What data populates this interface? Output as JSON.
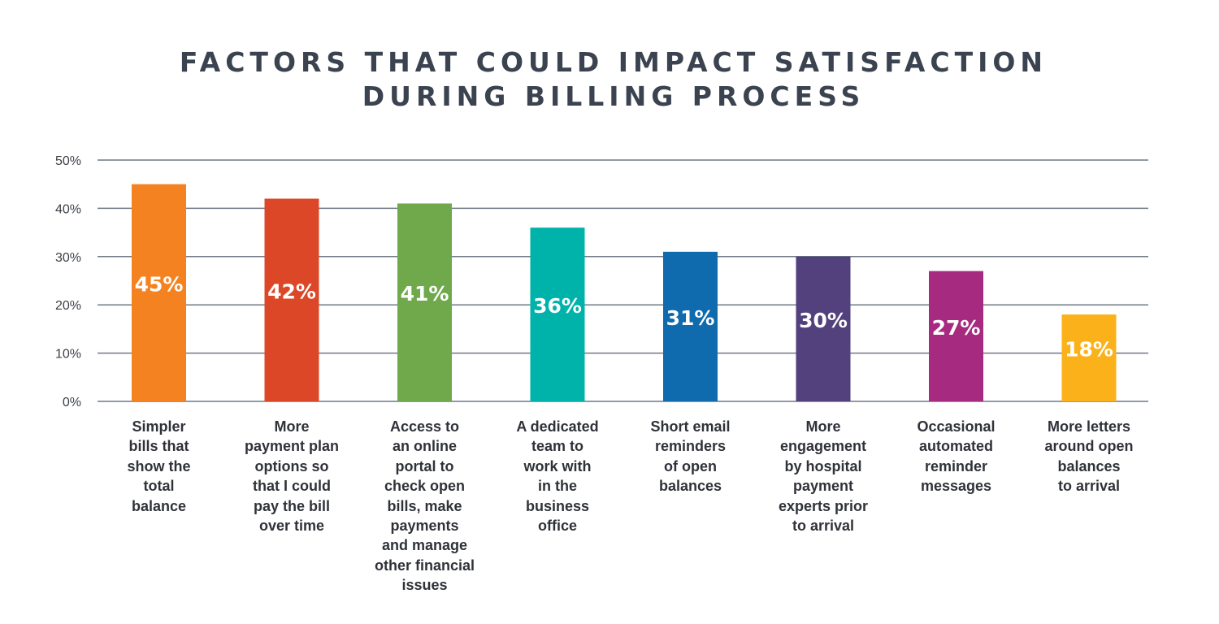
{
  "chart_data": {
    "type": "bar",
    "title": [
      "FACTORS THAT COULD IMPACT SATISFACTION",
      "DURING BILLING PROCESS"
    ],
    "xlabel": "",
    "ylabel": "",
    "ylim": [
      0,
      50
    ],
    "yticks": [
      "0%",
      "10%",
      "20%",
      "30%",
      "40%",
      "50%"
    ],
    "ytick_values": [
      0,
      10,
      20,
      30,
      40,
      50
    ],
    "grid": true,
    "categories": [
      "Simpler bills that show the total balance",
      "More payment plan options so that I could pay the bill over time",
      "Access to an online portal to check open bills, make payments and manage other financial issues",
      "A dedicated team to work with in the business office",
      "Short email reminders of open balances",
      "More engagement by hospital payment experts prior to arrival",
      "Occasional automated reminder messages",
      "More letters around open balances to arrival"
    ],
    "category_lines": [
      [
        "Simpler",
        "bills that",
        "show the",
        "total",
        "balance"
      ],
      [
        "More",
        "payment plan",
        "options so",
        "that I could",
        "pay the bill",
        "over time"
      ],
      [
        "Access to",
        "an online",
        "portal to",
        "check open",
        "bills, make",
        "payments",
        "and manage",
        "other financial",
        "issues"
      ],
      [
        "A dedicated",
        "team to",
        "work with",
        "in the",
        "business",
        "office"
      ],
      [
        "Short email",
        "reminders",
        "of open",
        "balances"
      ],
      [
        "More",
        "engagement",
        "by hospital",
        "payment",
        "experts prior",
        "to arrival"
      ],
      [
        "Occasional",
        "automated",
        "reminder",
        "messages"
      ],
      [
        "More letters",
        "around open",
        "balances",
        "to arrival"
      ]
    ],
    "values": [
      45,
      42,
      41,
      36,
      31,
      30,
      27,
      18
    ],
    "data_labels": [
      "45%",
      "42%",
      "41%",
      "36%",
      "31%",
      "30%",
      "27%",
      "18%"
    ],
    "colors": [
      "#F58220",
      "#DC4827",
      "#70A84C",
      "#00B3AA",
      "#106AAE",
      "#52417D",
      "#A62A7F",
      "#FBB21A"
    ],
    "gridline_color": "#6f7885"
  }
}
